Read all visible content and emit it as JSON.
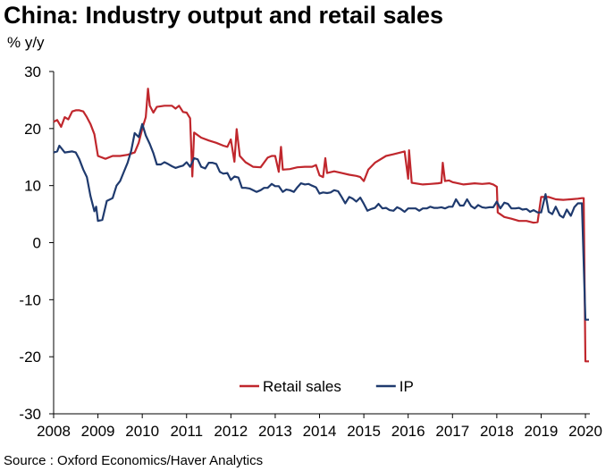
{
  "title": "China: Industry output and retail sales",
  "unit_label": "% y/y",
  "source": "Source : Oxford Economics/Haver Analytics",
  "chart_data": {
    "type": "line",
    "ylim": [
      -30,
      30
    ],
    "yticks": [
      30,
      20,
      10,
      0,
      -10,
      -20,
      -30
    ],
    "xlim": [
      2008,
      2020.1
    ],
    "xticks": [
      "2008",
      "2009",
      "2010",
      "2011",
      "2012",
      "2013",
      "2014",
      "2015",
      "2016",
      "2017",
      "2018",
      "2019",
      "2020"
    ],
    "grid": false,
    "legend": "bottom-center",
    "series": [
      {
        "name": "Retail sales",
        "color": "#c0272d",
        "points": [
          [
            2008.0,
            21.2
          ],
          [
            2008.08,
            21.5
          ],
          [
            2008.17,
            20.3
          ],
          [
            2008.25,
            22.0
          ],
          [
            2008.33,
            21.6
          ],
          [
            2008.42,
            23.0
          ],
          [
            2008.5,
            23.2
          ],
          [
            2008.58,
            23.2
          ],
          [
            2008.67,
            23.0
          ],
          [
            2008.75,
            22.0
          ],
          [
            2008.83,
            20.8
          ],
          [
            2008.92,
            19.0
          ],
          [
            2009.0,
            15.2
          ],
          [
            2009.17,
            14.7
          ],
          [
            2009.33,
            15.2
          ],
          [
            2009.5,
            15.2
          ],
          [
            2009.67,
            15.4
          ],
          [
            2009.83,
            15.8
          ],
          [
            2009.92,
            17.5
          ],
          [
            2010.0,
            20.0
          ],
          [
            2010.08,
            22.0
          ],
          [
            2010.13,
            27.0
          ],
          [
            2010.17,
            24.0
          ],
          [
            2010.25,
            22.8
          ],
          [
            2010.33,
            23.8
          ],
          [
            2010.5,
            24.0
          ],
          [
            2010.67,
            24.0
          ],
          [
            2010.75,
            23.5
          ],
          [
            2010.83,
            24.0
          ],
          [
            2010.92,
            22.9
          ],
          [
            2011.0,
            22.8
          ],
          [
            2011.08,
            21.8
          ],
          [
            2011.13,
            11.6
          ],
          [
            2011.17,
            19.3
          ],
          [
            2011.33,
            18.4
          ],
          [
            2011.5,
            17.9
          ],
          [
            2011.67,
            17.5
          ],
          [
            2011.83,
            17.0
          ],
          [
            2011.92,
            16.8
          ],
          [
            2012.0,
            18.1
          ],
          [
            2012.08,
            14.2
          ],
          [
            2012.13,
            19.9
          ],
          [
            2012.2,
            15.2
          ],
          [
            2012.33,
            14.1
          ],
          [
            2012.5,
            13.3
          ],
          [
            2012.67,
            13.2
          ],
          [
            2012.83,
            14.9
          ],
          [
            2012.92,
            15.2
          ],
          [
            2013.0,
            15.2
          ],
          [
            2013.08,
            12.4
          ],
          [
            2013.13,
            16.8
          ],
          [
            2013.17,
            12.8
          ],
          [
            2013.33,
            12.9
          ],
          [
            2013.5,
            13.2
          ],
          [
            2013.67,
            13.3
          ],
          [
            2013.83,
            13.3
          ],
          [
            2013.92,
            13.6
          ],
          [
            2014.0,
            11.8
          ],
          [
            2014.08,
            11.5
          ],
          [
            2014.13,
            14.8
          ],
          [
            2014.17,
            12.2
          ],
          [
            2014.33,
            12.5
          ],
          [
            2014.5,
            12.2
          ],
          [
            2014.67,
            11.9
          ],
          [
            2014.83,
            11.7
          ],
          [
            2014.92,
            11.5
          ],
          [
            2015.0,
            10.8
          ],
          [
            2015.1,
            12.8
          ],
          [
            2015.25,
            14.0
          ],
          [
            2015.5,
            15.2
          ],
          [
            2015.67,
            15.5
          ],
          [
            2015.83,
            15.8
          ],
          [
            2015.92,
            16.0
          ],
          [
            2016.0,
            11.2
          ],
          [
            2016.02,
            16.2
          ],
          [
            2016.08,
            10.5
          ],
          [
            2016.33,
            10.2
          ],
          [
            2016.5,
            10.3
          ],
          [
            2016.67,
            10.4
          ],
          [
            2016.75,
            10.5
          ],
          [
            2016.78,
            14.0
          ],
          [
            2016.83,
            10.8
          ],
          [
            2016.92,
            10.9
          ],
          [
            2017.0,
            10.6
          ],
          [
            2017.25,
            10.2
          ],
          [
            2017.5,
            10.4
          ],
          [
            2017.67,
            10.3
          ],
          [
            2017.83,
            10.4
          ],
          [
            2017.92,
            10.2
          ],
          [
            2018.0,
            9.8
          ],
          [
            2018.02,
            5.3
          ],
          [
            2018.17,
            4.5
          ],
          [
            2018.33,
            4.2
          ],
          [
            2018.5,
            3.8
          ],
          [
            2018.67,
            3.8
          ],
          [
            2018.83,
            3.5
          ],
          [
            2018.92,
            3.6
          ],
          [
            2019.0,
            8.0
          ],
          [
            2019.17,
            8.0
          ],
          [
            2019.33,
            7.6
          ],
          [
            2019.5,
            7.5
          ],
          [
            2019.67,
            7.6
          ],
          [
            2019.83,
            7.7
          ],
          [
            2019.92,
            7.8
          ],
          [
            2019.96,
            7.8
          ],
          [
            2020.0,
            -20.8
          ],
          [
            2020.08,
            -20.8
          ]
        ]
      },
      {
        "name": "IP",
        "color": "#1f3a6e",
        "points": [
          [
            2008.0,
            15.8
          ],
          [
            2008.08,
            16.0
          ],
          [
            2008.13,
            17.0
          ],
          [
            2008.25,
            15.8
          ],
          [
            2008.42,
            16.0
          ],
          [
            2008.5,
            15.8
          ],
          [
            2008.58,
            14.6
          ],
          [
            2008.67,
            12.8
          ],
          [
            2008.75,
            11.5
          ],
          [
            2008.83,
            8.2
          ],
          [
            2008.92,
            5.5
          ],
          [
            2008.96,
            6.3
          ],
          [
            2009.0,
            3.8
          ],
          [
            2009.1,
            4.0
          ],
          [
            2009.2,
            7.3
          ],
          [
            2009.33,
            7.8
          ],
          [
            2009.42,
            10.0
          ],
          [
            2009.5,
            10.8
          ],
          [
            2009.58,
            12.3
          ],
          [
            2009.67,
            14.0
          ],
          [
            2009.75,
            16.1
          ],
          [
            2009.83,
            19.2
          ],
          [
            2009.92,
            18.5
          ],
          [
            2010.0,
            20.8
          ],
          [
            2010.08,
            18.8
          ],
          [
            2010.17,
            17.3
          ],
          [
            2010.25,
            15.7
          ],
          [
            2010.33,
            13.7
          ],
          [
            2010.42,
            13.7
          ],
          [
            2010.5,
            14.1
          ],
          [
            2010.58,
            13.8
          ],
          [
            2010.67,
            13.4
          ],
          [
            2010.75,
            13.1
          ],
          [
            2010.83,
            13.3
          ],
          [
            2010.92,
            13.5
          ],
          [
            2011.0,
            14.1
          ],
          [
            2011.08,
            13.3
          ],
          [
            2011.17,
            14.8
          ],
          [
            2011.25,
            14.6
          ],
          [
            2011.33,
            13.3
          ],
          [
            2011.42,
            13.0
          ],
          [
            2011.5,
            14.0
          ],
          [
            2011.58,
            14.0
          ],
          [
            2011.67,
            13.8
          ],
          [
            2011.75,
            12.4
          ],
          [
            2011.83,
            12.1
          ],
          [
            2011.92,
            12.2
          ],
          [
            2012.0,
            11.0
          ],
          [
            2012.08,
            11.6
          ],
          [
            2012.17,
            11.4
          ],
          [
            2012.25,
            9.6
          ],
          [
            2012.33,
            9.6
          ],
          [
            2012.42,
            9.5
          ],
          [
            2012.5,
            9.2
          ],
          [
            2012.58,
            8.9
          ],
          [
            2012.67,
            9.2
          ],
          [
            2012.75,
            9.6
          ],
          [
            2012.83,
            9.6
          ],
          [
            2012.92,
            10.3
          ],
          [
            2013.0,
            9.9
          ],
          [
            2013.08,
            9.9
          ],
          [
            2013.17,
            8.9
          ],
          [
            2013.25,
            9.3
          ],
          [
            2013.33,
            9.2
          ],
          [
            2013.42,
            8.9
          ],
          [
            2013.5,
            9.7
          ],
          [
            2013.58,
            10.4
          ],
          [
            2013.67,
            10.2
          ],
          [
            2013.75,
            10.3
          ],
          [
            2013.83,
            10.0
          ],
          [
            2013.92,
            9.7
          ],
          [
            2014.0,
            8.6
          ],
          [
            2014.08,
            8.8
          ],
          [
            2014.17,
            8.7
          ],
          [
            2014.25,
            8.8
          ],
          [
            2014.33,
            9.2
          ],
          [
            2014.42,
            9.0
          ],
          [
            2014.5,
            8.0
          ],
          [
            2014.58,
            6.9
          ],
          [
            2014.67,
            8.0
          ],
          [
            2014.75,
            7.7
          ],
          [
            2014.83,
            7.2
          ],
          [
            2014.92,
            7.9
          ],
          [
            2015.0,
            6.8
          ],
          [
            2015.08,
            5.6
          ],
          [
            2015.17,
            5.9
          ],
          [
            2015.25,
            6.1
          ],
          [
            2015.33,
            6.8
          ],
          [
            2015.42,
            6.0
          ],
          [
            2015.5,
            6.1
          ],
          [
            2015.58,
            5.7
          ],
          [
            2015.67,
            5.6
          ],
          [
            2015.75,
            6.2
          ],
          [
            2015.83,
            5.9
          ],
          [
            2015.92,
            5.4
          ],
          [
            2016.0,
            6.0
          ],
          [
            2016.08,
            6.0
          ],
          [
            2016.17,
            6.0
          ],
          [
            2016.25,
            5.6
          ],
          [
            2016.33,
            6.0
          ],
          [
            2016.42,
            6.0
          ],
          [
            2016.5,
            6.3
          ],
          [
            2016.58,
            6.1
          ],
          [
            2016.67,
            6.1
          ],
          [
            2016.75,
            6.2
          ],
          [
            2016.83,
            6.0
          ],
          [
            2016.92,
            6.3
          ],
          [
            2017.0,
            6.3
          ],
          [
            2017.08,
            7.6
          ],
          [
            2017.17,
            6.5
          ],
          [
            2017.25,
            6.5
          ],
          [
            2017.33,
            7.6
          ],
          [
            2017.42,
            6.4
          ],
          [
            2017.5,
            6.0
          ],
          [
            2017.58,
            6.6
          ],
          [
            2017.67,
            6.2
          ],
          [
            2017.75,
            6.1
          ],
          [
            2017.83,
            6.2
          ],
          [
            2017.92,
            6.2
          ],
          [
            2018.0,
            7.2
          ],
          [
            2018.08,
            6.0
          ],
          [
            2018.17,
            7.0
          ],
          [
            2018.25,
            6.8
          ],
          [
            2018.33,
            6.0
          ],
          [
            2018.42,
            6.0
          ],
          [
            2018.5,
            6.1
          ],
          [
            2018.58,
            5.8
          ],
          [
            2018.67,
            5.9
          ],
          [
            2018.75,
            5.4
          ],
          [
            2018.83,
            5.7
          ],
          [
            2018.92,
            5.3
          ],
          [
            2019.0,
            5.3
          ],
          [
            2019.1,
            8.5
          ],
          [
            2019.17,
            5.4
          ],
          [
            2019.25,
            5.0
          ],
          [
            2019.33,
            6.3
          ],
          [
            2019.42,
            4.8
          ],
          [
            2019.5,
            4.4
          ],
          [
            2019.58,
            5.8
          ],
          [
            2019.67,
            4.7
          ],
          [
            2019.75,
            6.2
          ],
          [
            2019.83,
            6.9
          ],
          [
            2019.92,
            6.9
          ],
          [
            2020.0,
            -13.5
          ],
          [
            2020.08,
            -13.5
          ]
        ]
      }
    ]
  }
}
